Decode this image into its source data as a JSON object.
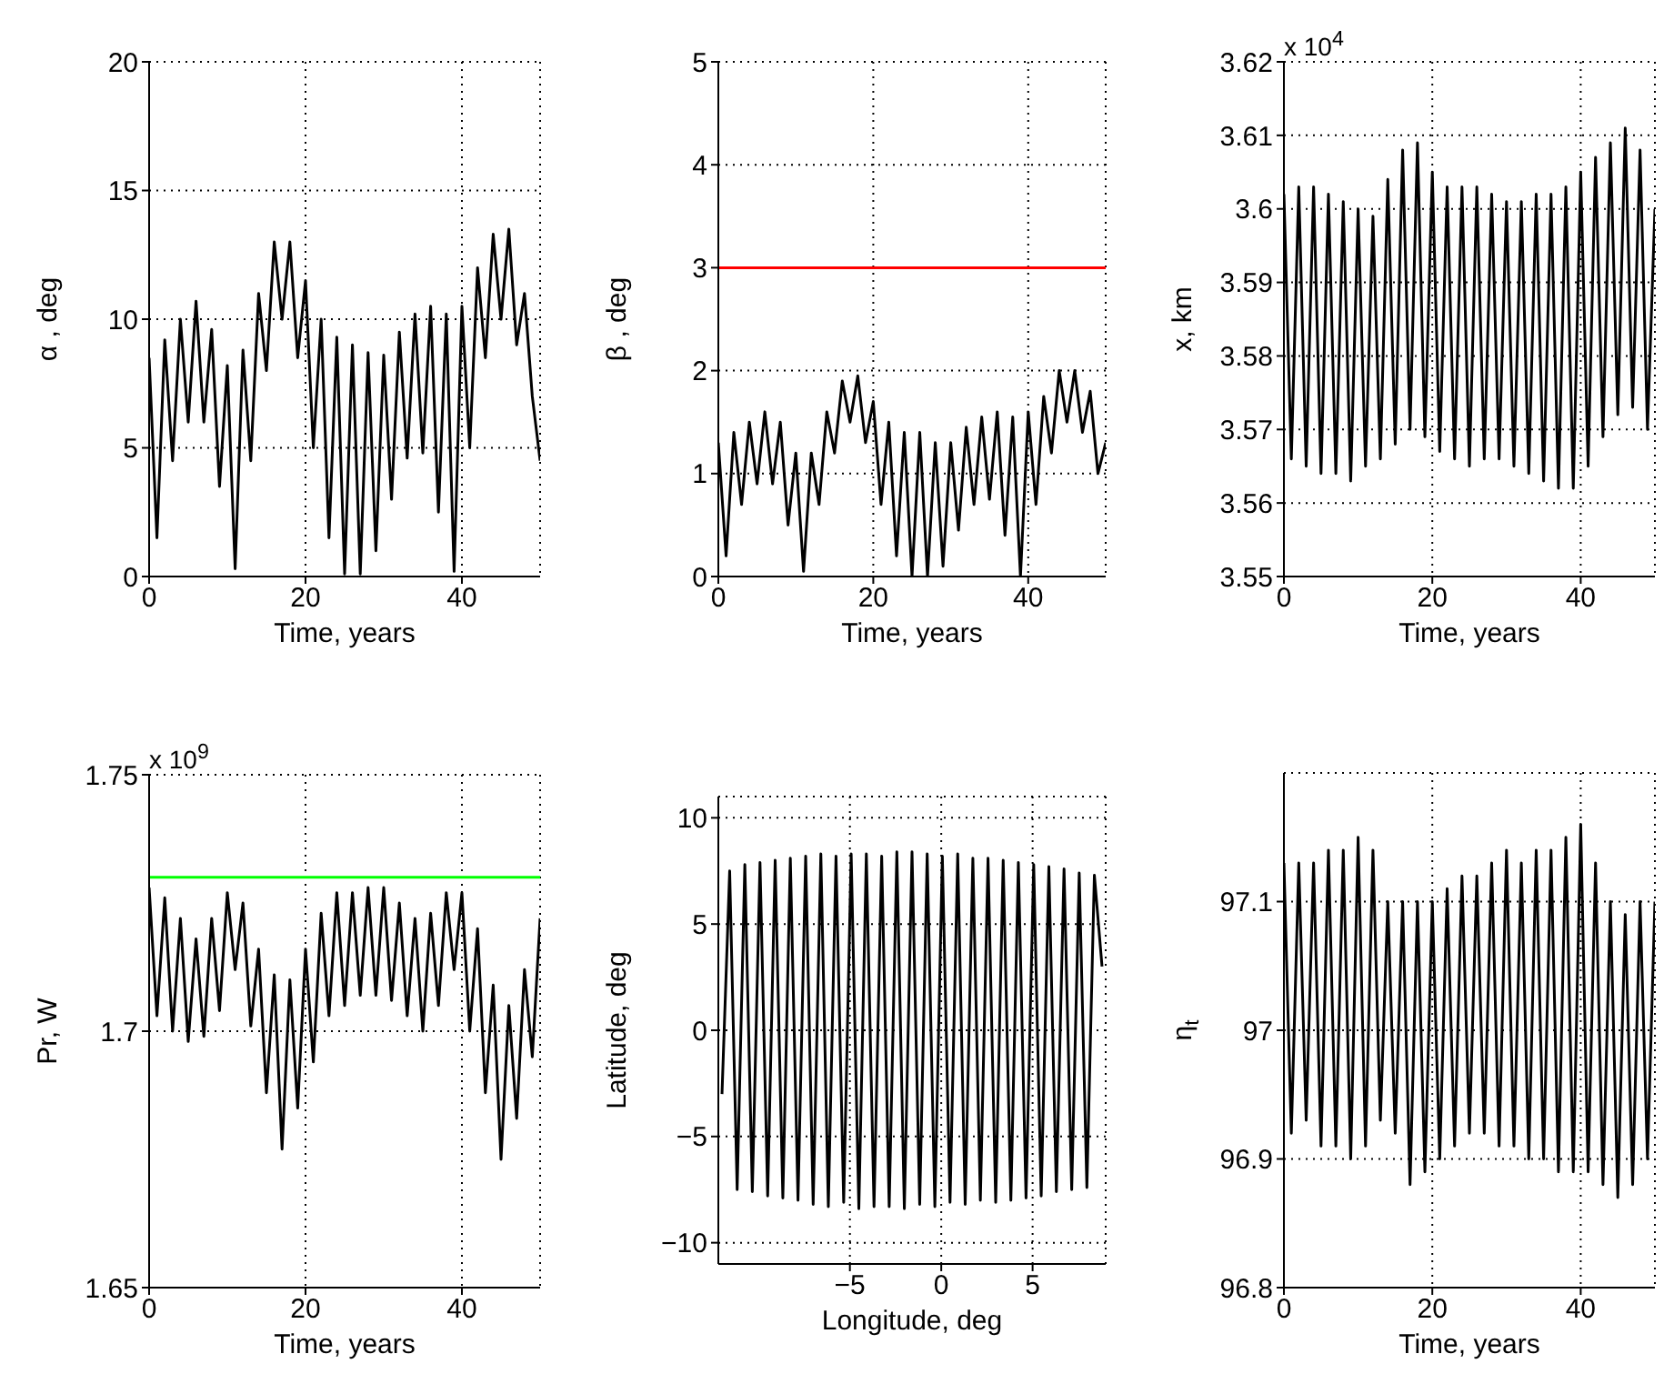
{
  "chart_data": [
    {
      "type": "line",
      "xlabel": "Time, years",
      "ylabel": "α , deg",
      "color": "#000000",
      "grid": true,
      "xlim": [
        0,
        50
      ],
      "ylim": [
        0,
        20
      ],
      "xticks": [
        0,
        20,
        40
      ],
      "yticks": [
        0,
        5,
        10,
        15,
        20
      ],
      "x": [
        0,
        1,
        2,
        3,
        4,
        5,
        6,
        7,
        8,
        9,
        10,
        11,
        12,
        13,
        14,
        15,
        16,
        17,
        18,
        19,
        20,
        21,
        22,
        23,
        24,
        25,
        26,
        27,
        28,
        29,
        30,
        31,
        32,
        33,
        34,
        35,
        36,
        37,
        38,
        39,
        40,
        41,
        42,
        43,
        44,
        45,
        46,
        47,
        48,
        49,
        50
      ],
      "values": [
        8.5,
        1.5,
        9.2,
        4.5,
        10,
        6,
        10.7,
        6,
        9.6,
        3.5,
        8.2,
        0.3,
        8.8,
        4.5,
        11,
        8,
        13,
        10,
        13,
        8.5,
        11.5,
        5,
        10,
        1.5,
        9.3,
        0.1,
        9,
        0.1,
        8.7,
        1,
        8.6,
        3,
        9.5,
        4.6,
        10.2,
        4.8,
        10.5,
        2.5,
        10.2,
        0.2,
        10.5,
        5,
        12,
        8.5,
        13.3,
        10,
        13.5,
        9,
        11,
        7,
        4.5
      ]
    },
    {
      "type": "line",
      "xlabel": "Time, years",
      "ylabel": "β , deg",
      "color": "#000000",
      "grid": true,
      "xlim": [
        0,
        50
      ],
      "ylim": [
        0,
        5
      ],
      "xticks": [
        0,
        20,
        40
      ],
      "yticks": [
        0,
        1,
        2,
        3,
        4,
        5
      ],
      "ref_lines": [
        {
          "axis": "y",
          "value": 3,
          "color": "#ff0000"
        }
      ],
      "x": [
        0,
        1,
        2,
        3,
        4,
        5,
        6,
        7,
        8,
        9,
        10,
        11,
        12,
        13,
        14,
        15,
        16,
        17,
        18,
        19,
        20,
        21,
        22,
        23,
        24,
        25,
        26,
        27,
        28,
        29,
        30,
        31,
        32,
        33,
        34,
        35,
        36,
        37,
        38,
        39,
        40,
        41,
        42,
        43,
        44,
        45,
        46,
        47,
        48,
        49,
        50
      ],
      "values": [
        1.3,
        0.2,
        1.4,
        0.7,
        1.5,
        0.9,
        1.6,
        0.9,
        1.5,
        0.5,
        1.2,
        0.05,
        1.2,
        0.7,
        1.6,
        1.2,
        1.9,
        1.5,
        1.95,
        1.3,
        1.7,
        0.7,
        1.5,
        0.2,
        1.4,
        0,
        1.4,
        0,
        1.3,
        0.1,
        1.3,
        0.45,
        1.45,
        0.7,
        1.55,
        0.75,
        1.6,
        0.4,
        1.55,
        0,
        1.6,
        0.7,
        1.75,
        1.2,
        2,
        1.5,
        2,
        1.4,
        1.8,
        1,
        1.3
      ]
    },
    {
      "type": "line",
      "xlabel": "Time, years",
      "ylabel": "x, km",
      "color": "#000000",
      "grid": true,
      "xlim": [
        0,
        50
      ],
      "ylim": [
        3.55,
        3.62
      ],
      "xticks": [
        0,
        20,
        40
      ],
      "yticks": [
        3.55,
        3.56,
        3.57,
        3.58,
        3.59,
        3.6,
        3.61,
        3.62
      ],
      "annotations": [
        "x 10$^{4}$"
      ],
      "x": [
        0,
        1,
        2,
        3,
        4,
        5,
        6,
        7,
        8,
        9,
        10,
        11,
        12,
        13,
        14,
        15,
        16,
        17,
        18,
        19,
        20,
        21,
        22,
        23,
        24,
        25,
        26,
        27,
        28,
        29,
        30,
        31,
        32,
        33,
        34,
        35,
        36,
        37,
        38,
        39,
        40,
        41,
        42,
        43,
        44,
        45,
        46,
        47,
        48,
        49,
        50
      ],
      "values": [
        3.602,
        3.566,
        3.603,
        3.565,
        3.603,
        3.564,
        3.602,
        3.564,
        3.601,
        3.563,
        3.6,
        3.565,
        3.599,
        3.566,
        3.604,
        3.568,
        3.608,
        3.57,
        3.609,
        3.569,
        3.605,
        3.567,
        3.603,
        3.566,
        3.603,
        3.565,
        3.603,
        3.566,
        3.602,
        3.566,
        3.601,
        3.565,
        3.601,
        3.564,
        3.602,
        3.563,
        3.602,
        3.562,
        3.603,
        3.562,
        3.605,
        3.565,
        3.607,
        3.569,
        3.609,
        3.572,
        3.611,
        3.573,
        3.608,
        3.57,
        3.6
      ]
    },
    {
      "type": "line",
      "xlabel": "Time, years",
      "ylabel": "Pr, W",
      "color": "#000000",
      "grid": true,
      "xlim": [
        0,
        50
      ],
      "ylim": [
        1.65,
        1.75
      ],
      "xticks": [
        0,
        20,
        40
      ],
      "yticks": [
        1.65,
        1.7,
        1.75
      ],
      "annotations": [
        "x 10$^{9}$"
      ],
      "ref_lines": [
        {
          "axis": "y",
          "value": 1.73,
          "color": "#00ff00"
        }
      ],
      "x": [
        0,
        1,
        2,
        3,
        4,
        5,
        6,
        7,
        8,
        9,
        10,
        11,
        12,
        13,
        14,
        15,
        16,
        17,
        18,
        19,
        20,
        21,
        22,
        23,
        24,
        25,
        26,
        27,
        28,
        29,
        30,
        31,
        32,
        33,
        34,
        35,
        36,
        37,
        38,
        39,
        40,
        41,
        42,
        43,
        44,
        45,
        46,
        47,
        48,
        49,
        50
      ],
      "values": [
        1.728,
        1.703,
        1.726,
        1.7,
        1.722,
        1.698,
        1.718,
        1.699,
        1.722,
        1.704,
        1.727,
        1.712,
        1.725,
        1.701,
        1.716,
        1.688,
        1.711,
        1.677,
        1.71,
        1.685,
        1.716,
        1.694,
        1.723,
        1.703,
        1.727,
        1.705,
        1.727,
        1.707,
        1.728,
        1.707,
        1.728,
        1.706,
        1.725,
        1.703,
        1.722,
        1.7,
        1.723,
        1.705,
        1.727,
        1.712,
        1.727,
        1.7,
        1.72,
        1.688,
        1.709,
        1.675,
        1.705,
        1.683,
        1.712,
        1.695,
        1.722
      ]
    },
    {
      "type": "line",
      "xlabel": "Longitude, deg",
      "ylabel": "Latitude, deg",
      "color": "#000000",
      "grid": true,
      "xlim": [
        -12.2,
        9
      ],
      "ylim": [
        -11,
        11
      ],
      "xticks": [
        {
          "value": -5,
          "label": "−5"
        },
        0,
        5
      ],
      "yticks": [
        {
          "value": -10,
          "label": "−10"
        },
        {
          "value": -5,
          "label": "−5"
        },
        0,
        5,
        10
      ],
      "x": [
        -12,
        -11.58,
        -11.17,
        -10.75,
        -10.34,
        -9.92,
        -9.5,
        -9.09,
        -8.67,
        -8.26,
        -7.84,
        -7.42,
        -7.01,
        -6.59,
        -6.18,
        -5.76,
        -5.34,
        -4.93,
        -4.51,
        -4.1,
        -3.68,
        -3.26,
        -2.85,
        -2.43,
        -2.02,
        -1.6,
        -1.18,
        -0.77,
        -0.35,
        0.06,
        0.48,
        0.9,
        1.31,
        1.73,
        2.14,
        2.56,
        2.98,
        3.39,
        3.81,
        4.22,
        4.64,
        5.06,
        5.47,
        5.89,
        6.3,
        6.72,
        7.14,
        7.55,
        7.97,
        8.38,
        8.8
      ],
      "values": [
        -3,
        7.5,
        -7.5,
        7.8,
        -7.6,
        7.9,
        -7.8,
        8,
        -7.9,
        8.1,
        -8,
        8.2,
        -8.2,
        8.3,
        -8.3,
        8.2,
        -8.1,
        8.3,
        -8.4,
        8.3,
        -8.3,
        8.2,
        -8.3,
        8.4,
        -8.4,
        8.4,
        -8.2,
        8.3,
        -8.3,
        8.2,
        -8.1,
        8.3,
        -8.2,
        8.1,
        -8,
        8.1,
        -8.1,
        8,
        -8,
        7.9,
        -7.9,
        7.8,
        -7.8,
        7.7,
        -7.6,
        7.6,
        -7.5,
        7.4,
        -7.4,
        7.3,
        3
      ]
    },
    {
      "type": "line",
      "xlabel": "Time, years",
      "ylabel": "η$_{t}$",
      "color": "#000000",
      "grid": true,
      "xlim": [
        0,
        50
      ],
      "ylim": [
        96.8,
        97.2
      ],
      "xticks": [
        0,
        20,
        40
      ],
      "yticks": [
        96.8,
        96.9,
        97,
        97.1
      ],
      "x": [
        0,
        1,
        2,
        3,
        4,
        5,
        6,
        7,
        8,
        9,
        10,
        11,
        12,
        13,
        14,
        15,
        16,
        17,
        18,
        19,
        20,
        21,
        22,
        23,
        24,
        25,
        26,
        27,
        28,
        29,
        30,
        31,
        32,
        33,
        34,
        35,
        36,
        37,
        38,
        39,
        40,
        41,
        42,
        43,
        44,
        45,
        46,
        47,
        48,
        49,
        50
      ],
      "values": [
        97.13,
        96.92,
        97.13,
        96.93,
        97.13,
        96.91,
        97.14,
        96.91,
        97.14,
        96.9,
        97.15,
        96.91,
        97.14,
        96.93,
        97.1,
        96.92,
        97.1,
        96.88,
        97.1,
        96.89,
        97.1,
        96.9,
        97.11,
        96.91,
        97.12,
        96.92,
        97.12,
        96.92,
        97.13,
        96.91,
        97.14,
        96.91,
        97.13,
        96.9,
        97.14,
        96.9,
        97.14,
        96.89,
        97.15,
        96.89,
        97.16,
        96.89,
        97.13,
        96.88,
        97.1,
        96.87,
        97.09,
        96.88,
        97.1,
        96.9,
        97.1
      ]
    }
  ]
}
